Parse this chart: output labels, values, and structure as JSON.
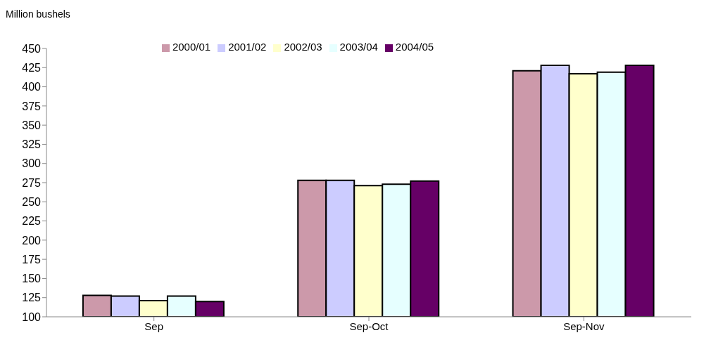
{
  "chart_data": {
    "type": "bar",
    "ylabel": "Million bushels",
    "categories": [
      "Sep",
      "Sep-Oct",
      "Sep-Nov"
    ],
    "series": [
      {
        "name": "2000/01",
        "color": "#cc99aa",
        "values": [
          128,
          278,
          421
        ]
      },
      {
        "name": "2001/02",
        "color": "#ccccff",
        "values": [
          127,
          278,
          428
        ]
      },
      {
        "name": "2002/03",
        "color": "#ffffcc",
        "values": [
          121,
          271,
          417
        ]
      },
      {
        "name": "2003/04",
        "color": "#e6ffff",
        "values": [
          127,
          273,
          419
        ]
      },
      {
        "name": "2004/05",
        "color": "#660066",
        "values": [
          120,
          277,
          428
        ]
      }
    ],
    "ylim": [
      100,
      450
    ],
    "yticks": [
      100,
      125,
      150,
      175,
      200,
      225,
      250,
      275,
      300,
      325,
      350,
      375,
      400,
      425,
      450
    ],
    "grid": false,
    "legend": "top"
  }
}
